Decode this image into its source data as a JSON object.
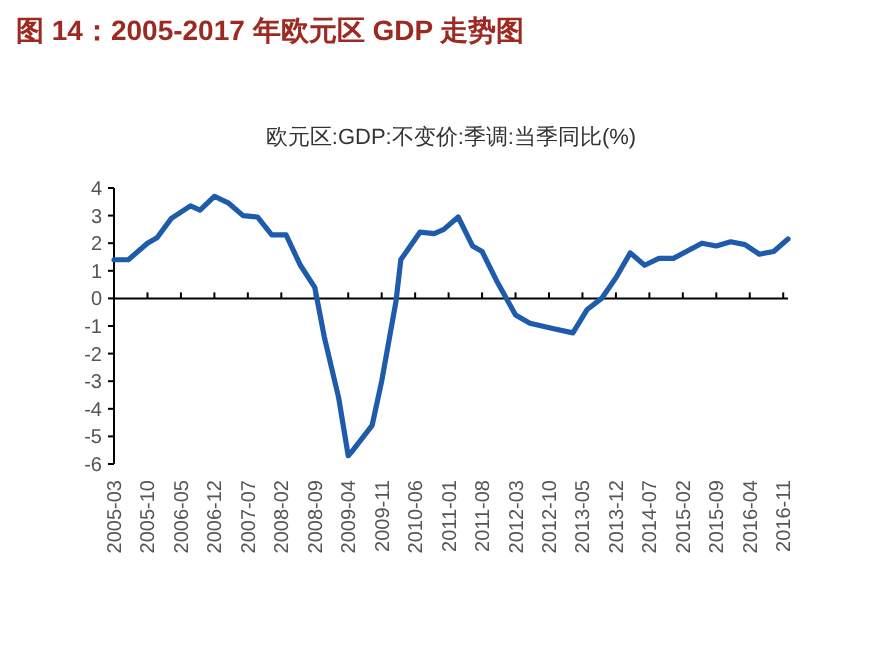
{
  "chart_data": {
    "type": "line",
    "title": "图 14：2005-2017 年欧元区 GDP 走势图",
    "subtitle": "欧元区:GDP:不变价:季调:当季同比(%)",
    "x": [
      "2005-03",
      "2005-06",
      "2005-10",
      "2005-12",
      "2006-03",
      "2006-07",
      "2006-09",
      "2006-12",
      "2007-03",
      "2007-06",
      "2007-09",
      "2007-12",
      "2008-03",
      "2008-06",
      "2008-09",
      "2008-11",
      "2009-02",
      "2009-04",
      "2009-05",
      "2009-09",
      "2009-11",
      "2010-02",
      "2010-03",
      "2010-07",
      "2010-10",
      "2010-12",
      "2011-03",
      "2011-06",
      "2011-08",
      "2011-11",
      "2012-03",
      "2012-06",
      "2012-11",
      "2013-03",
      "2013-06",
      "2013-09",
      "2013-12",
      "2014-03",
      "2014-06",
      "2014-09",
      "2014-12",
      "2015-06",
      "2015-09",
      "2015-12",
      "2016-03",
      "2016-06",
      "2016-09",
      "2016-12"
    ],
    "series": [
      {
        "color": "#1f5bab",
        "values": [
          1.4,
          1.4,
          2.0,
          2.2,
          2.9,
          3.35,
          3.2,
          3.7,
          3.45,
          3.0,
          2.95,
          2.3,
          2.3,
          1.2,
          0.4,
          -1.4,
          -3.6,
          -5.7,
          -5.5,
          -4.6,
          -3.0,
          -0.1,
          1.4,
          2.4,
          2.35,
          2.5,
          2.95,
          1.9,
          1.7,
          0.65,
          -0.6,
          -0.9,
          -1.1,
          -1.25,
          -0.4,
          0.0,
          0.75,
          1.65,
          1.2,
          1.45,
          1.45,
          2.0,
          1.9,
          2.05,
          1.95,
          1.6,
          1.7,
          2.15
        ]
      }
    ],
    "xlim": [
      "2005-03",
      "2016-12"
    ],
    "xticks": [
      "2005-03",
      "2005-10",
      "2006-05",
      "2006-12",
      "2007-07",
      "2008-02",
      "2008-09",
      "2009-04",
      "2009-11",
      "2010-06",
      "2011-01",
      "2011-08",
      "2012-03",
      "2012-10",
      "2013-05",
      "2013-12",
      "2014-07",
      "2015-02",
      "2015-09",
      "2016-04",
      "2016-11"
    ],
    "ylim": [
      -6,
      4
    ],
    "yticks": [
      -6,
      -5,
      -4,
      -3,
      -2,
      -1,
      0,
      1,
      2,
      3,
      4
    ],
    "marker": "none",
    "line_style": "solid"
  }
}
